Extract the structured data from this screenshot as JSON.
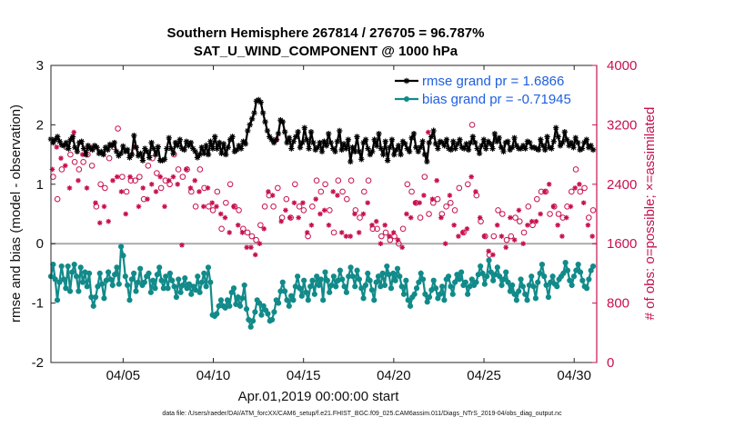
{
  "chart_data": {
    "type": "line",
    "title": "Southern Hemisphere 267814 / 276705 = 96.787%",
    "subtitle": "SAT_U_WIND_COMPONENT @ 1000 hPa",
    "xlabel": "Apr.01,2019 00:00:00 start",
    "ylabel": "rmse and bias (model - observation)",
    "y2label": "# of obs: o=possible; ×=assimilated",
    "footnote": "data file: /Users/raeder/DAI/ATM_forcXX/CAM6_setup/f.e21.FHIST_BGC.f09_025.CAM6assim.011/Diags_NTrS_2019-04/obs_diag_output.nc",
    "xlim": [
      1,
      31.25
    ],
    "ylim": [
      -2,
      3
    ],
    "y2lim": [
      0,
      4000
    ],
    "xticks": [
      5,
      10,
      15,
      20,
      25,
      30
    ],
    "xticklabels": [
      "04/05",
      "04/10",
      "04/15",
      "04/20",
      "04/25",
      "04/30"
    ],
    "yticks": [
      -2,
      -1,
      0,
      1,
      2,
      3
    ],
    "yticklabels": [
      "-2",
      "-1",
      "0",
      "1",
      "2",
      "3"
    ],
    "y2ticks": [
      0,
      800,
      1600,
      2400,
      3200,
      4000
    ],
    "y2ticklabels": [
      "0",
      "800",
      "1600",
      "2400",
      "3200",
      "4000"
    ],
    "legend_position": "top-right",
    "colors": {
      "rmse": "#000000",
      "bias": "#128a8a",
      "obs": "#c8104e",
      "zero": "#aaaaaa"
    },
    "series": [
      {
        "name": "rmse grand pr = 1.6866",
        "axis": "left",
        "marker": "star",
        "values": [
          1.76,
          1.7,
          1.75,
          1.8,
          1.72,
          1.66,
          1.65,
          1.7,
          1.6,
          1.75,
          1.8,
          1.62,
          1.55,
          1.7,
          1.72,
          1.6,
          1.5,
          1.65,
          1.6,
          1.58,
          1.65,
          1.62,
          1.52,
          1.55,
          1.5,
          1.62,
          1.58,
          1.67,
          1.65,
          1.7,
          1.55,
          1.48,
          1.52,
          1.64,
          1.55,
          1.58,
          1.45,
          1.5,
          1.82,
          1.62,
          1.48,
          1.52,
          1.4,
          1.6,
          1.55,
          1.45,
          1.7,
          1.6,
          1.5,
          1.63,
          1.4,
          1.4,
          1.42,
          1.6,
          1.78,
          1.6,
          1.52,
          1.7,
          1.65,
          1.75,
          1.6,
          1.58,
          1.72,
          1.65,
          1.7,
          1.6,
          1.55,
          1.45,
          1.5,
          1.62,
          1.52,
          1.65,
          1.5,
          1.72,
          1.6,
          1.8,
          1.6,
          1.7,
          1.52,
          1.68,
          1.5,
          1.62,
          1.75,
          1.8,
          1.55,
          1.58,
          1.65,
          1.6,
          1.72,
          1.68,
          1.9,
          2.0,
          2.1,
          2.2,
          2.4,
          2.42,
          2.38,
          2.2,
          2.05,
          1.9,
          1.8,
          1.75,
          1.7,
          1.75,
          1.85,
          2.08,
          2.05,
          1.88,
          1.7,
          1.78,
          1.6,
          1.72,
          1.8,
          1.88,
          1.62,
          1.7,
          1.95,
          1.75,
          1.6,
          1.88,
          1.7,
          1.58,
          1.62,
          1.7,
          1.55,
          1.72,
          1.65,
          1.85,
          1.7,
          1.6,
          1.55,
          1.72,
          1.9,
          1.58,
          1.68,
          1.6,
          1.75,
          1.38,
          1.62,
          1.55,
          1.8,
          1.55,
          1.42,
          1.7,
          1.75,
          1.6,
          1.5,
          1.55,
          1.75,
          1.65,
          1.85,
          1.6,
          1.5,
          1.72,
          1.4,
          1.62,
          1.75,
          1.5,
          1.58,
          1.65,
          1.5,
          1.72,
          1.68,
          1.6,
          1.55,
          1.78,
          1.85,
          1.62,
          1.55,
          1.62,
          1.72,
          1.5,
          1.38,
          1.7,
          1.8,
          1.9,
          1.68,
          1.6,
          1.72,
          1.7,
          1.65,
          1.75,
          1.6,
          1.58,
          1.72,
          1.6,
          1.68,
          1.75,
          1.62,
          1.6,
          1.68,
          1.58,
          1.7,
          1.8,
          1.7,
          1.6,
          1.52,
          1.65,
          1.75,
          1.6,
          1.72,
          1.68,
          1.6,
          1.85,
          1.72,
          1.78,
          1.62,
          1.55,
          1.7,
          1.72,
          1.58,
          1.62,
          1.78,
          1.65,
          1.6,
          1.6,
          1.65,
          1.6,
          1.72,
          1.7,
          1.62,
          1.62,
          1.6,
          1.58,
          1.75,
          1.65,
          1.58,
          1.8,
          1.62,
          1.6,
          1.72,
          1.95,
          1.8,
          1.65,
          1.7,
          1.88,
          1.75,
          1.65,
          1.7,
          1.62,
          1.78,
          1.7,
          1.58,
          1.6,
          1.7,
          1.75,
          1.62,
          1.65,
          1.58
        ]
      },
      {
        "name": "bias grand pr = -0.71945",
        "axis": "left",
        "marker": "circle",
        "values": [
          -0.55,
          -0.35,
          -0.6,
          -0.95,
          -0.65,
          -0.38,
          -0.6,
          -0.75,
          -0.38,
          -0.8,
          -0.48,
          -0.35,
          -0.55,
          -0.8,
          -0.4,
          -0.65,
          -0.48,
          -0.72,
          -0.5,
          -0.9,
          -1.05,
          -0.9,
          -0.72,
          -0.5,
          -0.68,
          -0.92,
          -0.62,
          -0.48,
          -0.6,
          -0.7,
          -0.52,
          -0.4,
          -0.68,
          -0.05,
          -0.2,
          -0.55,
          -0.7,
          -0.95,
          -0.6,
          -0.5,
          -0.8,
          -0.65,
          -0.42,
          -0.7,
          -0.65,
          -0.55,
          -0.5,
          -0.82,
          -0.62,
          -0.75,
          -0.52,
          -0.4,
          -0.62,
          -0.75,
          -0.55,
          -0.75,
          -0.5,
          -0.62,
          -0.72,
          -0.9,
          -0.6,
          -0.82,
          -0.7,
          -0.58,
          -0.75,
          -0.68,
          -0.85,
          -0.72,
          -0.78,
          -0.55,
          -0.82,
          -0.65,
          -0.5,
          -0.72,
          -0.4,
          -0.65,
          -1.2,
          -1.22,
          -1.18,
          -1.05,
          -0.95,
          -1.05,
          -1.08,
          -0.95,
          -1.05,
          -0.82,
          -0.75,
          -1.02,
          -0.9,
          -1.05,
          -0.92,
          -0.7,
          -1.1,
          -1.28,
          -1.4,
          -1.3,
          -1.15,
          -0.95,
          -1.0,
          -1.2,
          -1.05,
          -1.12,
          -1.18,
          -1.3,
          -1.28,
          -1.15,
          -0.95,
          -1.0,
          -0.8,
          -0.65,
          -0.8,
          -0.95,
          -1.05,
          -0.88,
          -0.95,
          -0.72,
          -0.55,
          -0.75,
          -0.88,
          -0.62,
          -0.82,
          -0.95,
          -0.72,
          -0.62,
          -0.85,
          -0.55,
          -0.7,
          -0.6,
          -0.95,
          -0.48,
          -0.62,
          -0.82,
          -0.7,
          -0.55,
          -0.72,
          -0.62,
          -0.45,
          -0.6,
          -0.72,
          -0.82,
          -0.55,
          -0.4,
          -0.55,
          -0.72,
          -0.45,
          -0.6,
          -0.75,
          -0.92,
          -0.7,
          -0.5,
          -0.62,
          -0.78,
          -0.95,
          -0.65,
          -0.55,
          -0.72,
          -0.5,
          -0.7,
          -0.38,
          -0.52,
          -0.75,
          -0.5,
          -0.62,
          -0.42,
          -0.55,
          -0.72,
          -0.85,
          -0.62,
          -0.95,
          -1.05,
          -0.9,
          -0.85,
          -0.75,
          -0.65,
          -0.5,
          -0.6,
          -0.85,
          -0.98,
          -0.9,
          -0.78,
          -0.62,
          -0.75,
          -0.92,
          -0.85,
          -0.72,
          -0.95,
          -0.6,
          -0.55,
          -0.72,
          -0.85,
          -0.65,
          -0.52,
          -0.6,
          -0.48,
          -0.7,
          -0.65,
          -0.85,
          -0.72,
          -0.6,
          -0.7,
          -0.65,
          -0.52,
          -0.38,
          -0.5,
          -0.68,
          -0.55,
          -0.28,
          -0.48,
          -0.62,
          -0.52,
          -0.4,
          -0.55,
          -0.7,
          -0.6,
          -0.48,
          -0.65,
          -0.8,
          -0.7,
          -0.85,
          -0.95,
          -0.8,
          -0.6,
          -0.72,
          -0.85,
          -0.95,
          -0.7,
          -0.55,
          -0.72,
          -0.92,
          -0.65,
          -0.5,
          -0.35,
          -0.55,
          -0.7,
          -0.9,
          -0.65,
          -0.55,
          -0.68,
          -0.72,
          -0.6,
          -0.55,
          -0.5,
          -0.32,
          -0.45,
          -0.62,
          -0.7,
          -0.55,
          -0.45,
          -0.35,
          -0.48,
          -0.62,
          -0.72,
          -0.75,
          -0.6,
          -0.45,
          -0.38
        ]
      },
      {
        "name": "possible",
        "axis": "right",
        "marker": "circle-open",
        "values": [
          2700,
          2500,
          3000,
          2200,
          2850,
          2600,
          2750,
          2900,
          2450,
          2800,
          3200,
          2700,
          2550,
          2600,
          2900,
          2700,
          2450,
          2800,
          3000,
          2650,
          2250,
          2100,
          1980,
          2400,
          2200,
          2350,
          2000,
          2750,
          2550,
          2900,
          2600,
          3150,
          2400,
          2500,
          2100,
          2300,
          2600,
          2450,
          3000,
          2450,
          2200,
          2500,
          2450,
          2200,
          2300,
          2650,
          2500,
          2750,
          2400,
          2550,
          2600,
          2350,
          2200,
          2450,
          2550,
          2400,
          2600,
          2800,
          2500,
          2600,
          1600,
          2500,
          2700,
          2600,
          2450,
          2300,
          2550,
          2100,
          2400,
          2600,
          2200,
          2350,
          2450,
          2100,
          2250,
          2050,
          2200,
          2300,
          2100,
          1800,
          2050,
          2150,
          1850,
          2400,
          2200,
          2100,
          1950,
          2050,
          1850,
          1800,
          1650,
          1750,
          1600,
          1700,
          1550,
          1650,
          1700,
          1850,
          1900,
          2100,
          2400,
          2250,
          2350,
          2100,
          3100,
          2350,
          2000,
          1950,
          2150,
          2200,
          2050,
          1950,
          2250,
          2400,
          2050,
          2100,
          2250,
          2050,
          1850,
          1700,
          1950,
          2100,
          2300,
          2450,
          2100,
          2300,
          2150,
          2400,
          1950,
          2050,
          2400,
          1750,
          2350,
          2450,
          1850,
          2300,
          1800,
          2200,
          1800,
          2450,
          2100,
          2050,
          1850,
          1950,
          2100,
          2300,
          2250,
          2450,
          1950,
          1800,
          2000,
          1800,
          1700,
          1700,
          1950,
          1750,
          1800,
          1650,
          1850,
          1700,
          1750,
          1600,
          1650,
          1800,
          2100,
          2400,
          2050,
          2300,
          2250,
          2150,
          2250,
          1950,
          2350,
          2500,
          3200,
          2000,
          2300,
          2150,
          2550,
          2200,
          2050,
          2000,
          1700,
          2100,
          2350,
          2150,
          1950,
          2050,
          1800,
          2350,
          1850,
          1750,
          1900,
          2400,
          2600,
          3200,
          2400,
          2250,
          2050,
          1900,
          1800,
          1700,
          1600,
          1450,
          1550,
          1700,
          1950,
          2050,
          1800,
          2000,
          1650,
          1650,
          2050,
          1700,
          1750,
          1950,
          2150,
          1900,
          1700,
          1750,
          1950,
          2100,
          2000,
          1850,
          2000,
          2200,
          2100,
          2300,
          2400,
          2300,
          2500,
          2000,
          2200,
          2100,
          1950,
          2000,
          1800,
          1950,
          2050,
          2100,
          2200,
          2300,
          2450,
          2600,
          2500,
          2300,
          2250,
          2350,
          1950,
          1950,
          1800,
          2050
        ]
      },
      {
        "name": "assimilated",
        "axis": "right",
        "marker": "star",
        "values": [
          2600,
          2400,
          2900,
          2100,
          2750,
          2500,
          2650,
          2800,
          2350,
          2700,
          3100,
          2600,
          2450,
          2500,
          2800,
          2600,
          2350,
          2700,
          2900,
          2550,
          2150,
          2000,
          1880,
          2300,
          2100,
          2250,
          1900,
          2650,
          2450,
          2800,
          2500,
          3050,
          2300,
          2400,
          2000,
          2200,
          2500,
          2350,
          2900,
          2350,
          2100,
          2400,
          2350,
          2100,
          2200,
          2550,
          2400,
          2650,
          2300,
          2450,
          2500,
          2250,
          2100,
          2350,
          2450,
          2300,
          2500,
          2700,
          2400,
          2500,
          1580,
          2400,
          2600,
          2500,
          2350,
          2200,
          2450,
          2000,
          2300,
          2500,
          2100,
          2250,
          2350,
          2000,
          2150,
          1950,
          2100,
          2200,
          2000,
          1700,
          1950,
          2050,
          1750,
          2300,
          2100,
          2000,
          1850,
          1950,
          1750,
          1700,
          1550,
          1650,
          1550,
          1600,
          1450,
          1550,
          1600,
          1750,
          1800,
          2000,
          2300,
          2150,
          2250,
          2000,
          3000,
          2250,
          1900,
          1850,
          2050,
          2100,
          1950,
          1850,
          2150,
          2300,
          1950,
          2000,
          2150,
          1950,
          1750,
          1600,
          1850,
          2000,
          2200,
          2350,
          2000,
          2200,
          2050,
          2300,
          1850,
          1950,
          2300,
          1650,
          2250,
          2350,
          1750,
          2200,
          1700,
          2100,
          1700,
          2350,
          2000,
          1950,
          1750,
          1850,
          2000,
          2200,
          2150,
          2350,
          1850,
          1700,
          1900,
          1700,
          1600,
          1600,
          1850,
          1650,
          1700,
          1550,
          1750,
          1600,
          1650,
          1550,
          1550,
          1700,
          2000,
          2300,
          1950,
          2200,
          2150,
          2050,
          2150,
          1850,
          2250,
          2400,
          3100,
          1900,
          2200,
          2050,
          2450,
          2100,
          1950,
          1900,
          1600,
          2000,
          2250,
          2050,
          1850,
          1950,
          1700,
          2250,
          1750,
          1650,
          1800,
          2300,
          2500,
          3100,
          2300,
          2150,
          1950,
          1800,
          1700,
          1600,
          1500,
          1350,
          1450,
          1600,
          1850,
          1950,
          1700,
          1900,
          1550,
          1550,
          1950,
          1600,
          1650,
          1850,
          2050,
          1800,
          1600,
          1650,
          1850,
          2000,
          1900,
          1750,
          1900,
          2100,
          2000,
          2200,
          2300,
          2200,
          2400,
          1900,
          2100,
          2000,
          1850,
          1900,
          1700,
          1850,
          1950,
          2000,
          2100,
          2200,
          2350,
          2500,
          2400,
          2200,
          2150,
          2250,
          1850,
          1850,
          1700,
          1950
        ]
      }
    ]
  }
}
